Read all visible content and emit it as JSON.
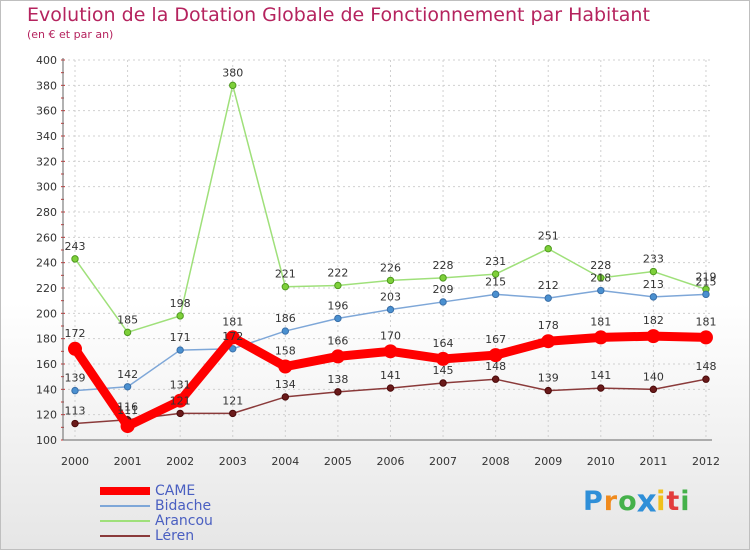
{
  "chart_data": {
    "type": "line",
    "title": "Evolution de la Dotation Globale de Fonctionnement par Habitant",
    "subtitle": "(en € et par an)",
    "xlabel": "",
    "ylabel": "",
    "categories": [
      "2000",
      "2001",
      "2002",
      "2003",
      "2004",
      "2005",
      "2006",
      "2007",
      "2008",
      "2009",
      "2010",
      "2011",
      "2012"
    ],
    "ylim": [
      100,
      400
    ],
    "yticks": [
      100,
      120,
      140,
      160,
      180,
      200,
      220,
      240,
      260,
      280,
      300,
      320,
      340,
      360,
      380,
      400
    ],
    "grid": true,
    "legend_position": "bottom-left",
    "series": [
      {
        "name": "CAME",
        "color": "#ff0000",
        "values": [
          172,
          111,
          131,
          181,
          158,
          166,
          170,
          164,
          167,
          178,
          181,
          182,
          181
        ],
        "labels": [
          "172",
          "111",
          "131",
          "181",
          "158",
          "166",
          "170",
          "164",
          "167",
          "178",
          "181",
          "182",
          "181"
        ]
      },
      {
        "name": "Bidache",
        "color": "#5b9bd5",
        "values": [
          139,
          142,
          171,
          172,
          186,
          196,
          203,
          209,
          215,
          212,
          218,
          213,
          215
        ],
        "labels": [
          "139",
          "142",
          "171",
          "172",
          "186",
          "196",
          "203",
          "209",
          "215",
          "212",
          "218",
          "213",
          "215"
        ]
      },
      {
        "name": "Arancou",
        "color": "#8fdc5b",
        "values": [
          243,
          185,
          198,
          380,
          221,
          222,
          226,
          228,
          231,
          251,
          228,
          233,
          219
        ],
        "labels": [
          "243",
          "185",
          "198",
          "380",
          "221",
          "222",
          "226",
          "228",
          "231",
          "251",
          "228",
          "233",
          "219"
        ]
      },
      {
        "name": "Léren",
        "color": "#7b2020",
        "values": [
          113,
          116,
          121,
          121,
          134,
          138,
          141,
          145,
          148,
          139,
          141,
          140,
          148
        ],
        "labels": [
          "113",
          "116",
          "121",
          "121",
          "134",
          "138",
          "141",
          "145",
          "148",
          "139",
          "141",
          "140",
          "148"
        ]
      }
    ]
  },
  "logo": {
    "letters": [
      "P",
      "r",
      "o",
      "x",
      "i",
      "t",
      "i"
    ],
    "colors": [
      "#2f8fd8",
      "#f08a1c",
      "#45b14a",
      "#2f8fd8",
      "#f0c01c",
      "#e23c3c",
      "#45b14a"
    ]
  }
}
